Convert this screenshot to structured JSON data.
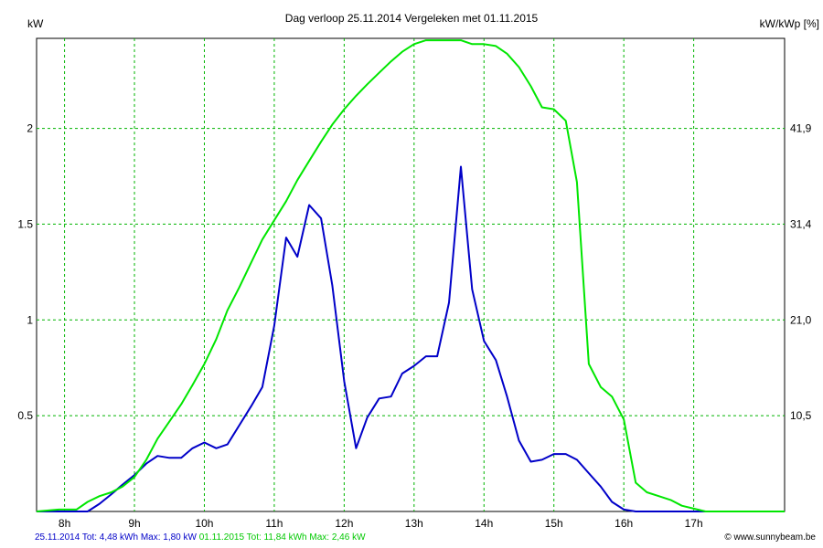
{
  "chart_data": {
    "type": "line",
    "title": "Dag  verloop 25.11.2014   Vergeleken met 01.11.2015",
    "ylabel": "kW",
    "ylabel_right": "kW/kWp [%]",
    "xlim": [
      7.6,
      18.3
    ],
    "ylim": [
      0,
      2.47
    ],
    "x_ticks": [
      8,
      9,
      10,
      11,
      12,
      13,
      14,
      15,
      16,
      17
    ],
    "x_tick_labels": [
      "8h",
      "9h",
      "10h",
      "11h",
      "12h",
      "13h",
      "14h",
      "15h",
      "16h",
      "17h"
    ],
    "y_ticks": [
      0.5,
      1,
      1.5,
      2
    ],
    "y_tick_labels": [
      "0.5",
      "1",
      "1.5",
      "2"
    ],
    "y_right_ticks": [
      0.5,
      1,
      1.5,
      2
    ],
    "y_right_tick_labels": [
      "10,5",
      "21,0",
      "31,4",
      "41,9"
    ],
    "grid": true,
    "series": [
      {
        "name": "25.11.2014",
        "color": "#0000c8",
        "points": [
          [
            7.6,
            0
          ],
          [
            8.33,
            0
          ],
          [
            8.5,
            0.04
          ],
          [
            8.67,
            0.09
          ],
          [
            8.83,
            0.14
          ],
          [
            9.0,
            0.19
          ],
          [
            9.17,
            0.25
          ],
          [
            9.33,
            0.29
          ],
          [
            9.5,
            0.28
          ],
          [
            9.67,
            0.28
          ],
          [
            9.83,
            0.33
          ],
          [
            10.0,
            0.36
          ],
          [
            10.17,
            0.33
          ],
          [
            10.33,
            0.35
          ],
          [
            10.5,
            0.45
          ],
          [
            10.67,
            0.55
          ],
          [
            10.83,
            0.65
          ],
          [
            11.0,
            0.97
          ],
          [
            11.17,
            1.43
          ],
          [
            11.33,
            1.33
          ],
          [
            11.5,
            1.6
          ],
          [
            11.67,
            1.53
          ],
          [
            11.83,
            1.18
          ],
          [
            12.0,
            0.68
          ],
          [
            12.17,
            0.33
          ],
          [
            12.33,
            0.49
          ],
          [
            12.5,
            0.59
          ],
          [
            12.67,
            0.6
          ],
          [
            12.83,
            0.72
          ],
          [
            13.0,
            0.76
          ],
          [
            13.17,
            0.81
          ],
          [
            13.33,
            0.81
          ],
          [
            13.5,
            1.09
          ],
          [
            13.67,
            1.8
          ],
          [
            13.83,
            1.16
          ],
          [
            14.0,
            0.89
          ],
          [
            14.17,
            0.79
          ],
          [
            14.33,
            0.6
          ],
          [
            14.5,
            0.37
          ],
          [
            14.67,
            0.26
          ],
          [
            14.83,
            0.27
          ],
          [
            15.0,
            0.3
          ],
          [
            15.17,
            0.3
          ],
          [
            15.33,
            0.27
          ],
          [
            15.5,
            0.2
          ],
          [
            15.67,
            0.13
          ],
          [
            15.83,
            0.05
          ],
          [
            16.0,
            0.01
          ],
          [
            16.17,
            0
          ],
          [
            18.3,
            0
          ]
        ]
      },
      {
        "name": "01.11.2015",
        "color": "#00e600",
        "points": [
          [
            7.6,
            0
          ],
          [
            7.92,
            0.01
          ],
          [
            8.17,
            0.01
          ],
          [
            8.33,
            0.05
          ],
          [
            8.5,
            0.08
          ],
          [
            8.67,
            0.1
          ],
          [
            8.83,
            0.13
          ],
          [
            9.0,
            0.18
          ],
          [
            9.17,
            0.27
          ],
          [
            9.33,
            0.38
          ],
          [
            9.5,
            0.47
          ],
          [
            9.67,
            0.56
          ],
          [
            9.83,
            0.66
          ],
          [
            10.0,
            0.77
          ],
          [
            10.17,
            0.9
          ],
          [
            10.33,
            1.05
          ],
          [
            10.5,
            1.17
          ],
          [
            10.67,
            1.3
          ],
          [
            10.83,
            1.42
          ],
          [
            11.0,
            1.52
          ],
          [
            11.17,
            1.62
          ],
          [
            11.33,
            1.73
          ],
          [
            11.5,
            1.83
          ],
          [
            11.67,
            1.93
          ],
          [
            11.83,
            2.02
          ],
          [
            12.0,
            2.1
          ],
          [
            12.17,
            2.17
          ],
          [
            12.33,
            2.23
          ],
          [
            12.5,
            2.29
          ],
          [
            12.67,
            2.35
          ],
          [
            12.83,
            2.4
          ],
          [
            13.0,
            2.44
          ],
          [
            13.17,
            2.46
          ],
          [
            13.33,
            2.46
          ],
          [
            13.5,
            2.46
          ],
          [
            13.67,
            2.46
          ],
          [
            13.83,
            2.44
          ],
          [
            14.0,
            2.44
          ],
          [
            14.17,
            2.43
          ],
          [
            14.33,
            2.39
          ],
          [
            14.5,
            2.32
          ],
          [
            14.67,
            2.22
          ],
          [
            14.83,
            2.11
          ],
          [
            15.0,
            2.1
          ],
          [
            15.17,
            2.04
          ],
          [
            15.33,
            1.72
          ],
          [
            15.5,
            0.77
          ],
          [
            15.67,
            0.65
          ],
          [
            15.83,
            0.6
          ],
          [
            16.0,
            0.48
          ],
          [
            16.17,
            0.15
          ],
          [
            16.33,
            0.1
          ],
          [
            16.5,
            0.08
          ],
          [
            16.67,
            0.06
          ],
          [
            16.83,
            0.03
          ],
          [
            17.17,
            0
          ],
          [
            18.3,
            0
          ]
        ]
      }
    ]
  },
  "footer": {
    "series1_summary": "25.11.2014 Tot: 4,48 kWh Max: 1,80 kW",
    "series2_summary": "01.11.2015 Tot: 11,84 kWh Max: 2,46 kW",
    "credit": "© www.sunnybeam.be"
  }
}
